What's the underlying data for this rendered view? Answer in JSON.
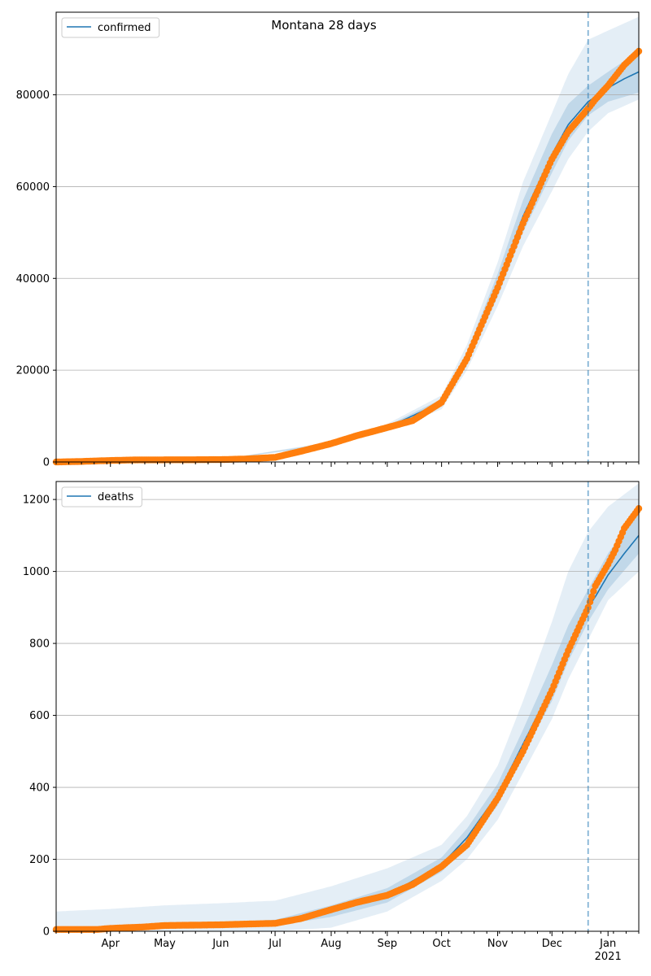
{
  "title": "Montana 28 days",
  "x_month_labels": [
    "Apr",
    "May",
    "Jun",
    "Jul",
    "Aug",
    "Sep",
    "Oct",
    "Nov",
    "Dec",
    "Jan"
  ],
  "x_year_label": "2021",
  "colors": {
    "model_line": "#1f77b4",
    "observed": "#ff7f0e",
    "band": "#1f77b4",
    "grid": "#b0b0b0",
    "forecast_line": "#1f77b4"
  },
  "chart_data": [
    {
      "type": "line",
      "legend": "confirmed",
      "legend_position": "top-left",
      "grid": "horizontal",
      "xlim": [
        "2020-03-02",
        "2021-01-18"
      ],
      "ylim": [
        0,
        98000
      ],
      "yticks": [
        0,
        20000,
        40000,
        60000,
        80000
      ],
      "forecast_start": "2020-12-21",
      "observed": {
        "x": [
          "2020-03-02",
          "2020-03-15",
          "2020-03-30",
          "2020-04-15",
          "2020-05-01",
          "2020-05-15",
          "2020-06-01",
          "2020-06-15",
          "2020-07-01",
          "2020-07-15",
          "2020-08-01",
          "2020-08-15",
          "2020-09-01",
          "2020-09-15",
          "2020-10-01",
          "2020-10-15",
          "2020-11-01",
          "2020-11-15",
          "2020-12-01",
          "2020-12-10",
          "2020-12-21",
          "2020-12-25",
          "2021-01-01",
          "2021-01-05",
          "2021-01-10",
          "2021-01-18"
        ],
        "y": [
          0,
          100,
          300,
          450,
          470,
          480,
          520,
          650,
          1000,
          2300,
          4000,
          5700,
          7500,
          9000,
          13000,
          22500,
          38000,
          52000,
          66000,
          72000,
          77000,
          79000,
          82000,
          84000,
          86500,
          89500
        ]
      },
      "model": {
        "x": [
          "2020-03-02",
          "2020-04-15",
          "2020-06-01",
          "2020-07-01",
          "2020-08-01",
          "2020-09-01",
          "2020-10-01",
          "2020-10-15",
          "2020-11-01",
          "2020-11-15",
          "2020-12-01",
          "2020-12-10",
          "2020-12-21",
          "2021-01-01",
          "2021-01-10",
          "2021-01-18"
        ],
        "y": [
          0,
          450,
          520,
          1000,
          4000,
          7500,
          13000,
          22500,
          38500,
          53500,
          67000,
          73500,
          78500,
          81500,
          83500,
          85000
        ]
      },
      "bands": [
        {
          "x": [
            "2020-03-02",
            "2020-06-01",
            "2020-08-01",
            "2020-09-01",
            "2020-10-01",
            "2020-10-15",
            "2020-11-01",
            "2020-11-15",
            "2020-12-01",
            "2020-12-10",
            "2020-12-21",
            "2021-01-01",
            "2021-01-18"
          ],
          "lower": [
            0,
            500,
            3600,
            6700,
            11500,
            20000,
            34000,
            47000,
            59000,
            66000,
            72000,
            76000,
            79000
          ],
          "upper": [
            0,
            560,
            4400,
            8300,
            14500,
            25500,
            43500,
            61000,
            76000,
            84500,
            92000,
            94000,
            97000
          ]
        },
        {
          "x": [
            "2020-03-02",
            "2020-06-01",
            "2020-08-01",
            "2020-09-01",
            "2020-10-01",
            "2020-10-15",
            "2020-11-01",
            "2020-11-15",
            "2020-12-01",
            "2020-12-10",
            "2020-12-21",
            "2021-01-01",
            "2021-01-18"
          ],
          "lower": [
            0,
            510,
            3800,
            7100,
            12300,
            21200,
            36000,
            50000,
            63000,
            70000,
            75500,
            78500,
            80500
          ],
          "upper": [
            0,
            540,
            4200,
            7900,
            13700,
            24000,
            41000,
            57000,
            71500,
            78000,
            82000,
            85000,
            89500
          ]
        }
      ]
    },
    {
      "type": "line",
      "legend": "deaths",
      "legend_position": "top-left",
      "grid": "horizontal",
      "xlim": [
        "2020-03-02",
        "2021-01-18"
      ],
      "ylim": [
        0,
        1250
      ],
      "yticks": [
        0,
        200,
        400,
        600,
        800,
        1000,
        1200
      ],
      "forecast_start": "2020-12-21",
      "observed": {
        "x": [
          "2020-03-02",
          "2020-03-25",
          "2020-04-01",
          "2020-04-20",
          "2020-05-01",
          "2020-06-01",
          "2020-06-15",
          "2020-07-01",
          "2020-07-15",
          "2020-08-01",
          "2020-08-15",
          "2020-09-01",
          "2020-09-15",
          "2020-10-01",
          "2020-10-15",
          "2020-11-01",
          "2020-11-15",
          "2020-12-01",
          "2020-12-10",
          "2020-12-21",
          "2020-12-25",
          "2021-01-01",
          "2021-01-05",
          "2021-01-10",
          "2021-01-18"
        ],
        "y": [
          5,
          5,
          8,
          12,
          16,
          18,
          20,
          22,
          35,
          60,
          80,
          100,
          130,
          180,
          240,
          370,
          500,
          670,
          780,
          900,
          960,
          1020,
          1060,
          1120,
          1175
        ]
      },
      "model": {
        "x": [
          "2020-03-02",
          "2020-04-01",
          "2020-05-01",
          "2020-06-01",
          "2020-07-01",
          "2020-08-01",
          "2020-09-01",
          "2020-10-01",
          "2020-10-15",
          "2020-11-01",
          "2020-11-15",
          "2020-12-01",
          "2020-12-10",
          "2020-12-21",
          "2020-12-25",
          "2021-01-01",
          "2021-01-10",
          "2021-01-18"
        ],
        "y": [
          5,
          7,
          14,
          18,
          22,
          55,
          100,
          185,
          260,
          380,
          520,
          680,
          790,
          900,
          930,
          990,
          1050,
          1100
        ]
      },
      "bands": [
        {
          "x": [
            "2020-03-02",
            "2020-04-01",
            "2020-05-01",
            "2020-06-01",
            "2020-07-01",
            "2020-08-01",
            "2020-09-01",
            "2020-10-01",
            "2020-10-15",
            "2020-11-01",
            "2020-11-15",
            "2020-12-01",
            "2020-12-10",
            "2020-12-21",
            "2021-01-01",
            "2021-01-18"
          ],
          "lower": [
            0,
            0,
            0,
            0,
            0,
            10,
            55,
            140,
            200,
            310,
            440,
            590,
            700,
            810,
            920,
            1000
          ],
          "upper": [
            55,
            62,
            72,
            78,
            85,
            125,
            175,
            240,
            320,
            460,
            640,
            860,
            1000,
            1110,
            1180,
            1245
          ]
        },
        {
          "x": [
            "2020-03-02",
            "2020-04-01",
            "2020-05-01",
            "2020-06-01",
            "2020-07-01",
            "2020-08-01",
            "2020-09-01",
            "2020-10-01",
            "2020-10-15",
            "2020-11-01",
            "2020-11-15",
            "2020-12-01",
            "2020-12-10",
            "2020-12-21",
            "2021-01-01",
            "2021-01-18"
          ],
          "lower": [
            2,
            3,
            8,
            12,
            15,
            40,
            80,
            165,
            235,
            350,
            490,
            640,
            750,
            860,
            950,
            1050
          ],
          "upper": [
            8,
            12,
            22,
            26,
            32,
            72,
            120,
            205,
            285,
            410,
            560,
            740,
            850,
            950,
            1050,
            1170
          ]
        }
      ]
    }
  ]
}
